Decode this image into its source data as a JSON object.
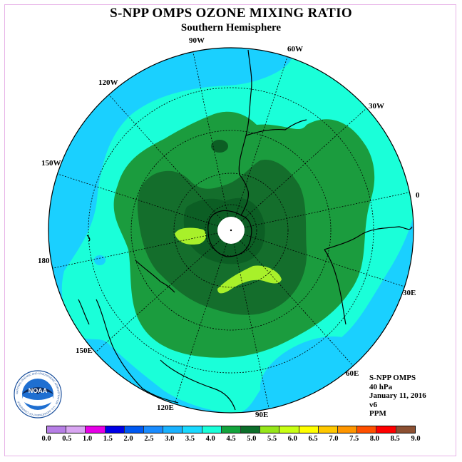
{
  "title": "S-NPP OMPS OZONE MIXING RATIO",
  "subtitle": "Southern Hemisphere",
  "longitude_labels": {
    "lon_90w": "90W",
    "lon_60w": "60W",
    "lon_30w": "30W",
    "lon_0": "0",
    "lon_30e": "30E",
    "lon_60e": "60E",
    "lon_90e": "90E",
    "lon_120e": "120E",
    "lon_150e": "150E",
    "lon_180": "180",
    "lon_150w": "150W",
    "lon_120w": "120W"
  },
  "info": {
    "instrument": "S-NPP OMPS",
    "level": "40 hPa",
    "date": "January 11, 2016",
    "version": "v6",
    "units": "PPM"
  },
  "colorbar": {
    "ticks": [
      "0.0",
      "0.5",
      "1.0",
      "1.5",
      "2.0",
      "2.5",
      "3.0",
      "3.5",
      "4.0",
      "4.5",
      "5.0",
      "5.5",
      "6.0",
      "6.5",
      "7.0",
      "7.5",
      "8.0",
      "8.5",
      "9.0"
    ],
    "colors": [
      "#b77fe6",
      "#d9a6f2",
      "#e600e6",
      "#0000e6",
      "#0059f2",
      "#1a8cff",
      "#1ab2ff",
      "#1ad9ff",
      "#1affd9",
      "#13a43c",
      "#0c6e2a",
      "#96e61a",
      "#c8ff14",
      "#ffff00",
      "#ffc800",
      "#ff9600",
      "#ff5000",
      "#ff0000",
      "#8c5032"
    ]
  },
  "map_colors": {
    "band_3_0": "#1ad0ff",
    "band_3_5": "#1affd9",
    "band_4_0": "#1b9c3e",
    "band_4_5": "#146e2c",
    "band_5_0": "#0c5e24",
    "band_5_5": "#a8f02a",
    "pole_hole": "#ffffff"
  },
  "logo": {
    "text": "NOAA",
    "ring_text": "NATIONAL OCEANIC AND ATMOSPHERIC ADMINISTRATION · U.S. DEPARTMENT OF COMMERCE"
  }
}
